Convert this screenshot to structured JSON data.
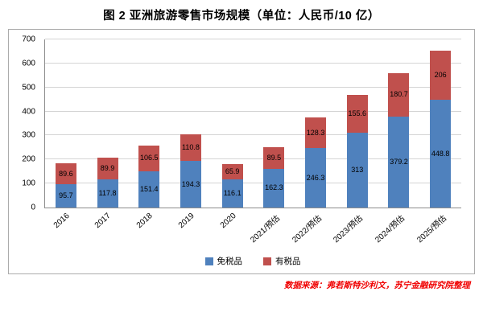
{
  "title": "图 2 亚洲旅游零售市场规模（单位：人民币/10 亿）",
  "source": "数据来源：弗若斯特沙利文，苏宁金融研究院整理",
  "chart_data": {
    "type": "bar",
    "stacked": true,
    "title": "图 2 亚洲旅游零售市场规模（单位：人民币/10 亿）",
    "categories": [
      "2016",
      "2017",
      "2018",
      "2019",
      "2020",
      "2021/预估",
      "2022/预估",
      "2023/预估",
      "2024/预估",
      "2025/预估"
    ],
    "series": [
      {
        "name": "免税品",
        "color": "#4f81bd",
        "values": [
          95.7,
          117.8,
          151.4,
          194.3,
          116.1,
          162.3,
          246.3,
          313,
          379.2,
          448.8
        ]
      },
      {
        "name": "有税品",
        "color": "#c0504d",
        "values": [
          89.6,
          89.9,
          106.5,
          110.8,
          65.9,
          89.5,
          128.3,
          155.6,
          180.7,
          206
        ]
      }
    ],
    "xlabel": "",
    "ylabel": "",
    "ylim": [
      0,
      700
    ],
    "ytick_step": 100,
    "grid": true,
    "legend_position": "bottom"
  }
}
